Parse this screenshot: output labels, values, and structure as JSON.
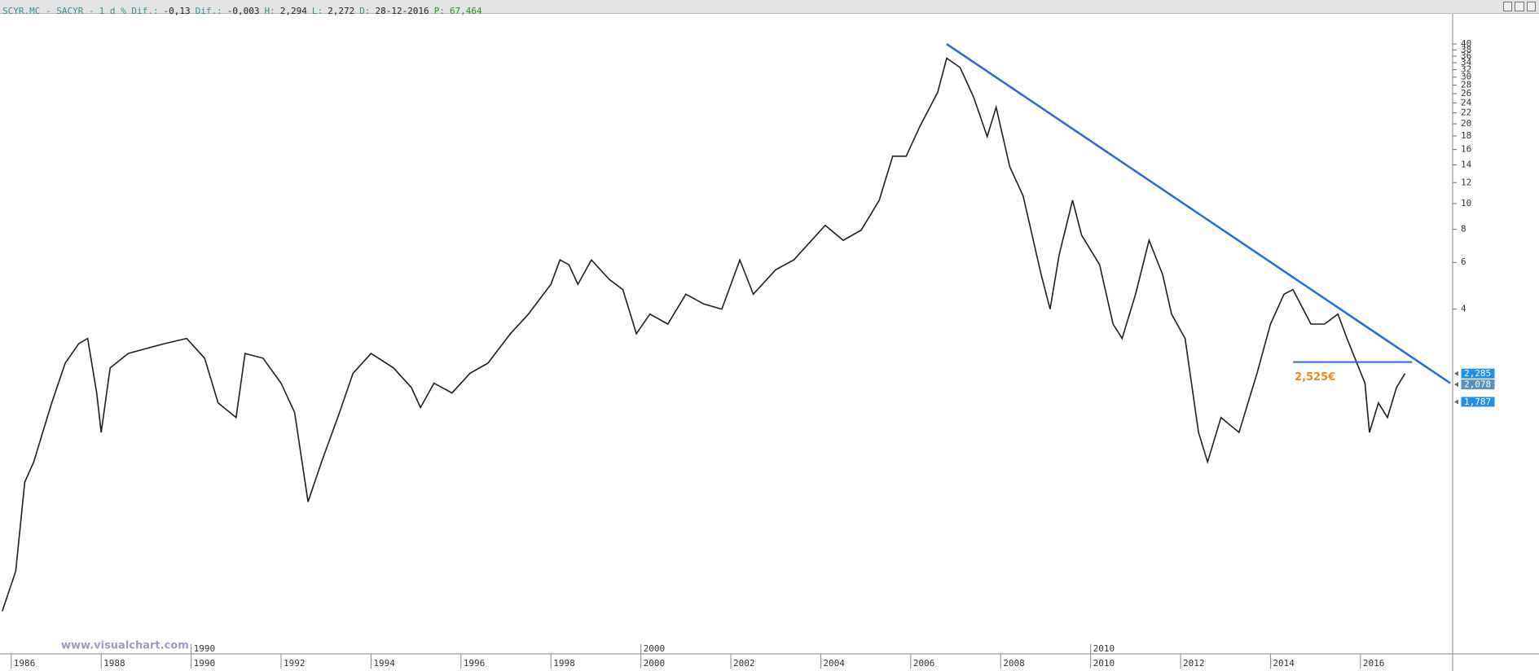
{
  "header": {
    "items": [
      "SCYR.MC - SACYR -",
      "1 d % Dif.:",
      "-0,13",
      "Dif.:",
      "-0,003",
      "H:",
      "2,294",
      "L:",
      "2,272",
      "D:",
      "28-12-2016",
      "P:",
      "67,464"
    ]
  },
  "chart_data": {
    "type": "line",
    "log_scale": true,
    "watermark": "www.visualchart.com",
    "x": [
      1985.8,
      1986.1,
      1986.3,
      1986.5,
      1986.7,
      1986.9,
      1987.2,
      1987.5,
      1987.7,
      1987.9,
      1988.0,
      1988.2,
      1988.6,
      1989.0,
      1989.4,
      1989.9,
      1990.3,
      1990.6,
      1991.0,
      1991.2,
      1991.6,
      1992.0,
      1992.3,
      1992.6,
      1992.9,
      1993.3,
      1993.6,
      1994.0,
      1994.5,
      1994.9,
      1995.1,
      1995.4,
      1995.8,
      1996.2,
      1996.6,
      1997.1,
      1997.5,
      1998.0,
      1998.2,
      1998.4,
      1998.6,
      1998.9,
      1999.3,
      1999.6,
      1999.9,
      2000.2,
      2000.6,
      2001.0,
      2001.4,
      2001.8,
      2002.2,
      2002.5,
      2003.0,
      2003.4,
      2004.1,
      2004.5,
      2004.9,
      2005.3,
      2005.6,
      2005.9,
      2006.2,
      2006.6,
      2006.8,
      2007.1,
      2007.4,
      2007.7,
      2007.9,
      2008.2,
      2008.5,
      2008.9,
      2009.1,
      2009.3,
      2009.6,
      2009.8,
      2010.2,
      2010.5,
      2010.7,
      2011.0,
      2011.3,
      2011.6,
      2011.8,
      2012.1,
      2012.4,
      2012.6,
      2012.9,
      2013.3,
      2013.7,
      2014.0,
      2014.3,
      2014.5,
      2014.9,
      2015.2,
      2015.5,
      2015.7,
      2016.1,
      2016.2,
      2016.4,
      2016.6,
      2016.8,
      2016.99
    ],
    "series": [
      {
        "name": "SACYR",
        "color": "#1e1e1e",
        "values": [
          0.29,
          0.41,
          0.89,
          1.06,
          1.37,
          1.77,
          2.5,
          2.96,
          3.1,
          1.93,
          1.37,
          2.4,
          2.72,
          2.84,
          2.96,
          3.1,
          2.61,
          1.77,
          1.56,
          2.72,
          2.61,
          2.1,
          1.63,
          0.75,
          1.06,
          1.63,
          2.29,
          2.72,
          2.4,
          2.02,
          1.7,
          2.1,
          1.93,
          2.29,
          2.5,
          3.23,
          3.83,
          4.96,
          6.13,
          5.88,
          4.96,
          6.13,
          5.17,
          4.74,
          3.23,
          3.83,
          3.51,
          4.55,
          4.18,
          4.0,
          6.13,
          4.55,
          5.63,
          6.13,
          8.28,
          7.27,
          7.94,
          10.3,
          15.1,
          15.1,
          19.5,
          26.3,
          35.4,
          32.6,
          25.2,
          17.9,
          23.1,
          13.8,
          10.7,
          5.4,
          4.0,
          6.4,
          10.3,
          7.6,
          5.88,
          3.51,
          3.1,
          4.55,
          7.27,
          5.4,
          3.83,
          3.1,
          1.37,
          1.06,
          1.56,
          1.37,
          2.29,
          3.51,
          4.55,
          4.74,
          3.51,
          3.51,
          3.83,
          3.1,
          2.1,
          1.37,
          1.77,
          1.56,
          2.02,
          2.285
        ]
      }
    ],
    "trendline": {
      "x": [
        2006.8,
        2018.0
      ],
      "values": [
        40,
        2.1
      ],
      "color": "#1f6fd8"
    },
    "support": {
      "x": [
        2014.5,
        2017.15
      ],
      "value": 2.525,
      "label": "2,525€",
      "color": "#1f6fd8",
      "label_color": "#f08a1c"
    },
    "price_tags": [
      {
        "value": 2.285,
        "label": "2,285"
      },
      {
        "value": 2.078,
        "label": "2,078"
      },
      {
        "value": 1.787,
        "label": "1,787"
      }
    ],
    "xlim": [
      1985.75,
      2018.05
    ],
    "xticks": [
      1986,
      1988,
      1990,
      1992,
      1994,
      1996,
      1998,
      2000,
      2002,
      2004,
      2006,
      2008,
      2010,
      2012,
      2014,
      2016
    ],
    "decade_ticks": [
      1990,
      2000,
      2010
    ],
    "ylim": [
      0.2,
      52
    ],
    "yticks": [
      40,
      38,
      36,
      34,
      32,
      30,
      28,
      26,
      24,
      22,
      20,
      18,
      16,
      14,
      12,
      10,
      8,
      6,
      4
    ]
  }
}
